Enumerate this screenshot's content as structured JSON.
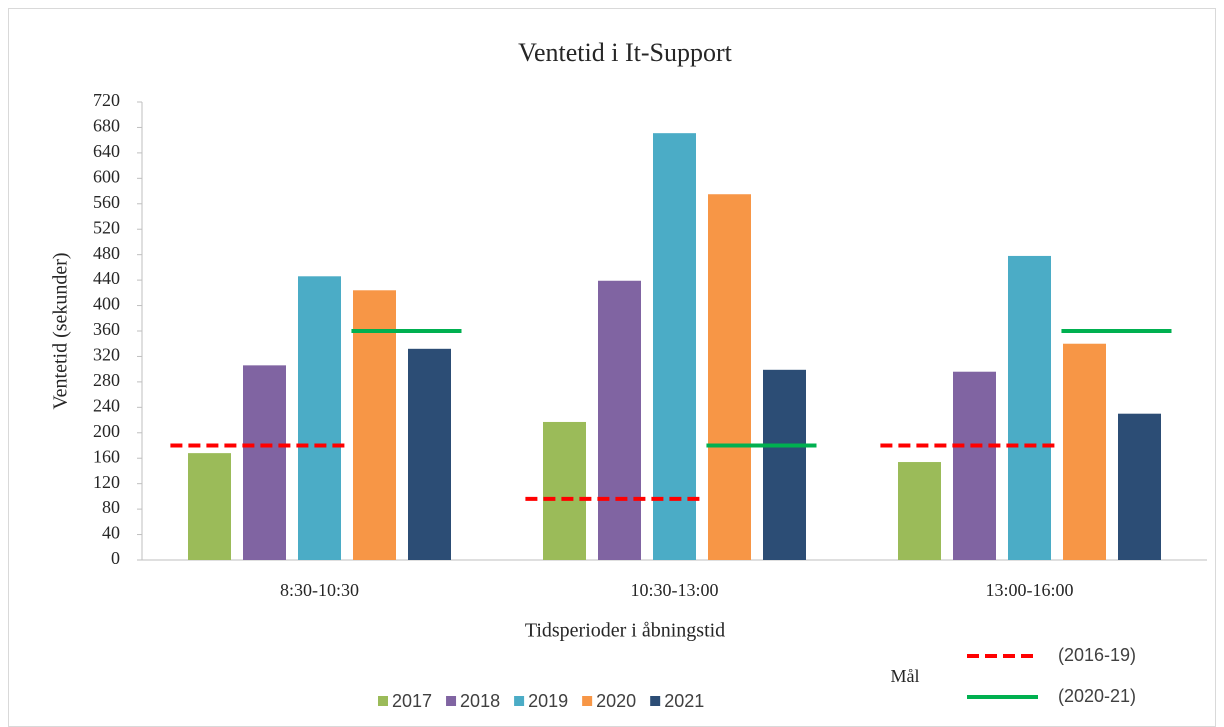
{
  "chart_data": {
    "type": "bar",
    "title": "Ventetid i It-Support",
    "y_label": "Ventetid (sekunder)",
    "x_label": "Tidsperioder i åbningstid",
    "categories": [
      "8:30-10:30",
      "10:30-13:00",
      "13:00-16:00"
    ],
    "series": [
      {
        "name": "2017",
        "color": "#9bbb59",
        "values": [
          168,
          217,
          154
        ]
      },
      {
        "name": "2018",
        "color": "#8064a2",
        "values": [
          306,
          439,
          296
        ]
      },
      {
        "name": "2019",
        "color": "#4bacc6",
        "values": [
          446,
          671,
          478
        ]
      },
      {
        "name": "2020",
        "color": "#f79646",
        "values": [
          424,
          575,
          340
        ]
      },
      {
        "name": "2021",
        "color": "#2c4d75",
        "values": [
          332,
          299,
          230
        ]
      }
    ],
    "targets_title": "Mål",
    "targets": [
      {
        "name": "(2016-19)",
        "color": "#ff0000",
        "dashed": true,
        "values": [
          180,
          96,
          180
        ]
      },
      {
        "name": "(2020-21)",
        "color": "#00b050",
        "dashed": false,
        "values": [
          360,
          180,
          360
        ]
      }
    ],
    "ylim": [
      0,
      720
    ],
    "yticks": [
      0,
      40,
      80,
      120,
      160,
      200,
      240,
      280,
      320,
      360,
      400,
      440,
      480,
      520,
      560,
      600,
      640,
      680,
      720
    ],
    "grid": false
  }
}
